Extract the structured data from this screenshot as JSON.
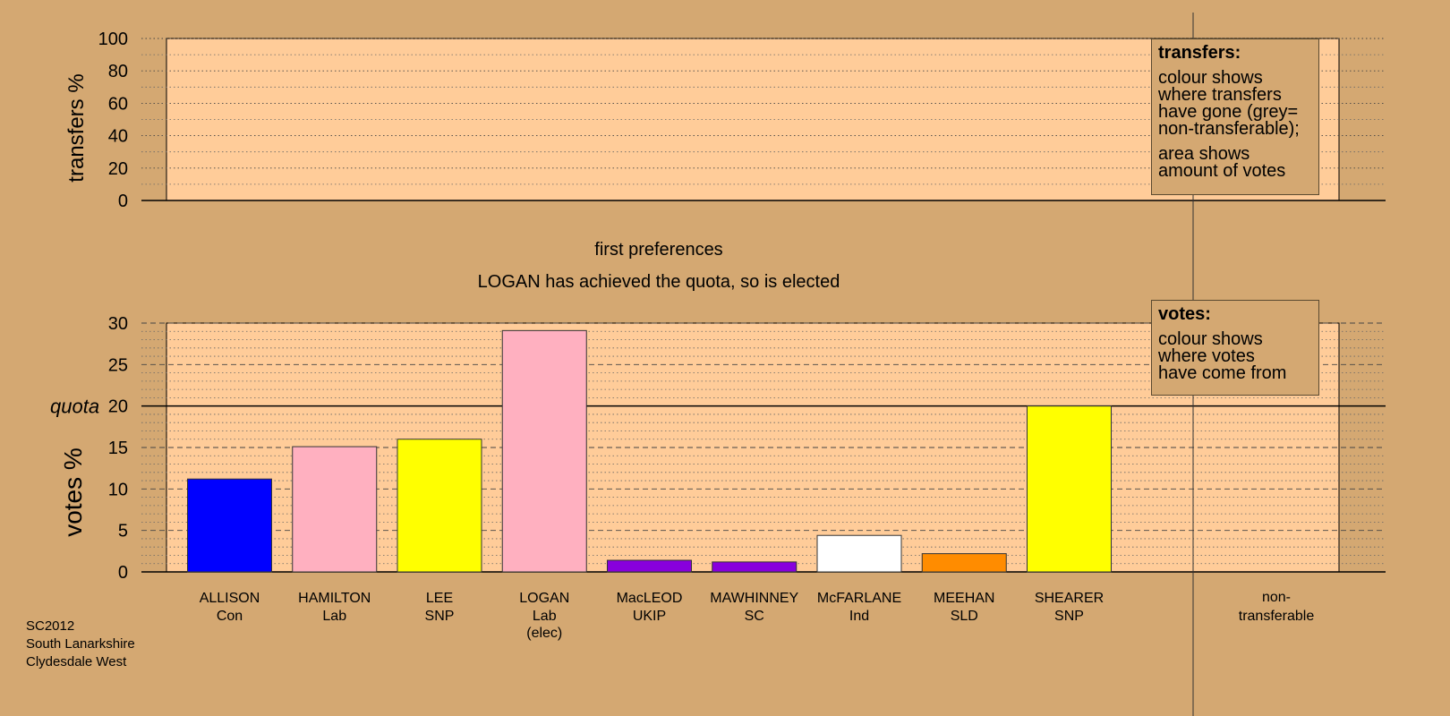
{
  "colors": {
    "background": "#d4a872",
    "plot_area": "#ffcc99",
    "frame": "#000000",
    "gridline": "#666666"
  },
  "chart_data": [
    {
      "id": "transfers",
      "type": "bar",
      "ylabel": "transfers %",
      "ylim": [
        0,
        100
      ],
      "yticks": [
        0,
        20,
        40,
        60,
        80,
        100
      ],
      "grid": true,
      "series": []
    },
    {
      "id": "votes",
      "type": "bar",
      "ylabel": "votes %",
      "ylim": [
        0,
        30
      ],
      "yticks": [
        0,
        5,
        10,
        15,
        20,
        25,
        30
      ],
      "grid": true,
      "quota": {
        "label": "quota",
        "value": 20
      },
      "categories": [
        {
          "name": "ALLISON",
          "party": "Con",
          "note": "",
          "value": 11.2,
          "color": "#0000ff"
        },
        {
          "name": "HAMILTON",
          "party": "Lab",
          "note": "",
          "value": 15.1,
          "color": "#ffb0c0"
        },
        {
          "name": "LEE",
          "party": "SNP",
          "note": "",
          "value": 16.0,
          "color": "#ffff00"
        },
        {
          "name": "LOGAN",
          "party": "Lab",
          "note": "(elec)",
          "value": 29.1,
          "color": "#ffb0c0"
        },
        {
          "name": "MacLEOD",
          "party": "UKIP",
          "note": "",
          "value": 1.4,
          "color": "#8800dd"
        },
        {
          "name": "MAWHINNEY",
          "party": "SC",
          "note": "",
          "value": 1.2,
          "color": "#8800dd"
        },
        {
          "name": "McFARLANE",
          "party": "Ind",
          "note": "",
          "value": 4.4,
          "color": "#ffffff"
        },
        {
          "name": "MEEHAN",
          "party": "SLD",
          "note": "",
          "value": 2.2,
          "color": "#ff8c00"
        },
        {
          "name": "SHEARER",
          "party": "SNP",
          "note": "",
          "value": 20.0,
          "color": "#ffff00"
        }
      ],
      "nontransferable": {
        "line1": "non-",
        "line2": "transferable",
        "value": 0
      }
    }
  ],
  "stage": {
    "title": "first preferences",
    "message": "LOGAN has achieved the quota, so is elected"
  },
  "legend_transfers": {
    "heading": "transfers:",
    "para1": "colour shows\nwhere transfers\nhave gone (grey=\nnon-transferable);",
    "para2": "area shows\namount of votes"
  },
  "legend_votes": {
    "heading": "votes:",
    "para1": "colour shows\nwhere votes\nhave come from"
  },
  "footer": {
    "line1": "SC2012",
    "line2": "South Lanarkshire",
    "line3": "Clydesdale West"
  }
}
